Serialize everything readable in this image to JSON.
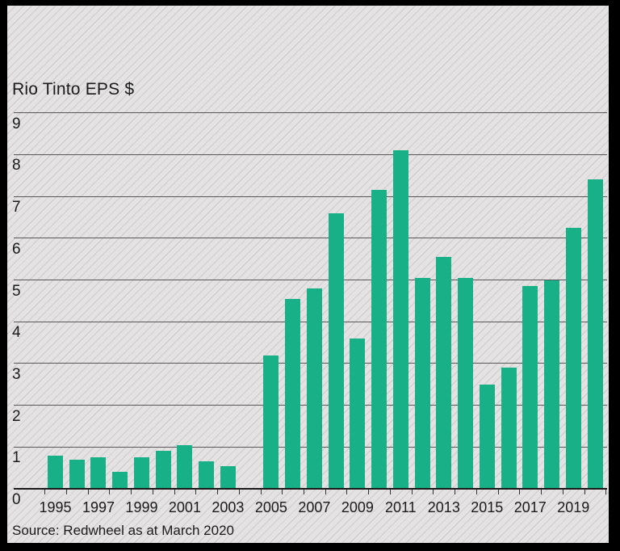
{
  "chart_data": {
    "type": "bar",
    "title": "Rio Tinto EPS $",
    "source_note": "Source: Redwheel as at March 2020",
    "xlabel": "",
    "ylabel": "Rio Tinto EPS $",
    "ylim": [
      0,
      9
    ],
    "y_ticks": [
      0,
      1,
      2,
      3,
      4,
      5,
      6,
      7,
      8,
      9
    ],
    "grid": "horizontal-on",
    "legend": "none",
    "bar_color": "#18b087",
    "background_color": "#e4e2e2",
    "frame_color": "#000000",
    "x_tick_labels": [
      "1995",
      "1997",
      "1999",
      "2001",
      "2003",
      "2005",
      "2007",
      "2009",
      "2011",
      "2013",
      "2015",
      "2017",
      "2019"
    ],
    "categories": [
      1995,
      1996,
      1997,
      1998,
      1999,
      2000,
      2001,
      2002,
      2003,
      2004,
      2005,
      2006,
      2007,
      2008,
      2009,
      2010,
      2011,
      2012,
      2013,
      2014,
      2015,
      2016,
      2017,
      2018,
      2019,
      2020
    ],
    "values": [
      0.8,
      0.7,
      0.75,
      0.4,
      0.75,
      0.9,
      1.05,
      0.65,
      0.55,
      null,
      3.2,
      4.55,
      4.8,
      6.6,
      3.6,
      7.15,
      8.1,
      5.05,
      5.55,
      5.05,
      2.5,
      2.9,
      4.85,
      5.0,
      6.25,
      7.4
    ]
  }
}
